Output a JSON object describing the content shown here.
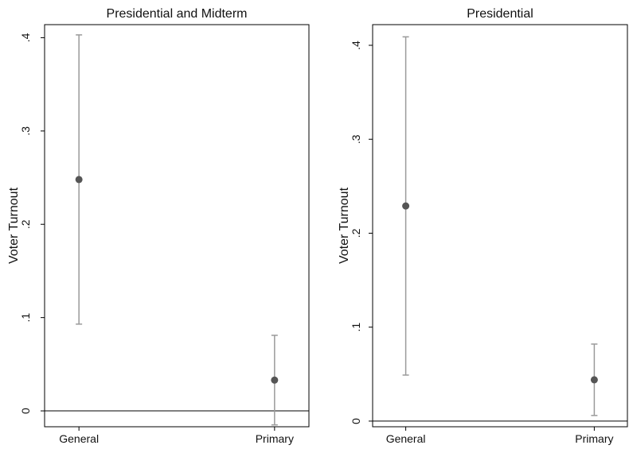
{
  "chart_data": [
    {
      "type": "scatter",
      "title": "Presidential and Midterm",
      "xlabel": "",
      "ylabel": "Voter Turnout",
      "categories": [
        "General",
        "Primary"
      ],
      "values": [
        0.248,
        0.033
      ],
      "ci_low": [
        0.093,
        -0.015
      ],
      "ci_high": [
        0.403,
        0.081
      ],
      "ylim": [
        -0.017,
        0.414
      ],
      "yticks": [
        0,
        0.1,
        0.2,
        0.3,
        0.4
      ],
      "ytick_labels": [
        "0",
        ".1",
        ".2",
        ".3",
        ".4"
      ],
      "reference_line_y": 0,
      "grid": false
    },
    {
      "type": "scatter",
      "title": "Presidential",
      "xlabel": "",
      "ylabel": "Voter Turnout",
      "categories": [
        "General",
        "Primary"
      ],
      "values": [
        0.229,
        0.044
      ],
      "ci_low": [
        0.049,
        0.006
      ],
      "ci_high": [
        0.409,
        0.082
      ],
      "ylim": [
        -0.006,
        0.422
      ],
      "yticks": [
        0,
        0.1,
        0.2,
        0.3,
        0.4
      ],
      "ytick_labels": [
        "0",
        ".1",
        ".2",
        ".3",
        ".4"
      ],
      "reference_line_y": 0,
      "grid": false
    }
  ],
  "colors": {
    "marker": "#555555",
    "error_bar": "#9a9a9a",
    "axis": "#000000",
    "reference_line": "#000000"
  }
}
